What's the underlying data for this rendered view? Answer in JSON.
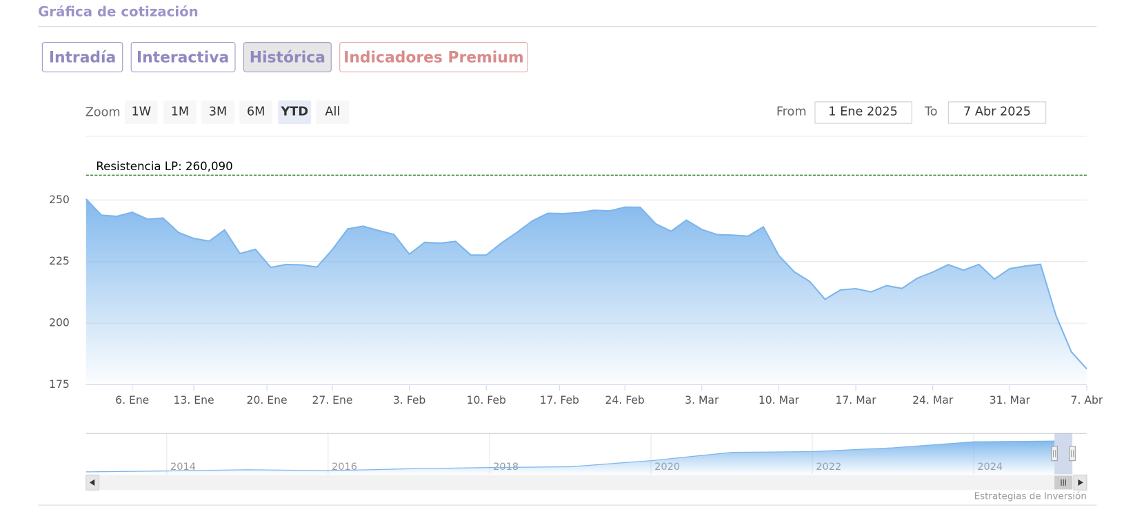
{
  "header": {
    "title": "Gráfica de cotización"
  },
  "tabs": [
    "Intradía",
    "Interactiva",
    "Histórica",
    "Indicadores Premium"
  ],
  "zoom": {
    "label": "Zoom",
    "buttons": [
      "1W",
      "1M",
      "3M",
      "6M",
      "YTD",
      "All"
    ]
  },
  "range": {
    "from_label": "From",
    "from": "1 Ene 2025",
    "to_label": "To",
    "to": "7 Abr 2025"
  },
  "credit": "Estrategias de Inversión",
  "chart_data": [
    {
      "type": "area",
      "color": "#7cb5ec",
      "grid": true,
      "x": [
        "2024-12-31",
        "2025-01-02",
        "2025-01-03",
        "2025-01-06",
        "2025-01-07",
        "2025-01-08",
        "2025-01-10",
        "2025-01-13",
        "2025-01-14",
        "2025-01-15",
        "2025-01-16",
        "2025-01-17",
        "2025-01-21",
        "2025-01-22",
        "2025-01-23",
        "2025-01-24",
        "2025-01-27",
        "2025-01-28",
        "2025-01-29",
        "2025-01-30",
        "2025-01-31",
        "2025-02-03",
        "2025-02-04",
        "2025-02-05",
        "2025-02-06",
        "2025-02-07",
        "2025-02-10",
        "2025-02-11",
        "2025-02-12",
        "2025-02-13",
        "2025-02-14",
        "2025-02-18",
        "2025-02-19",
        "2025-02-20",
        "2025-02-21",
        "2025-02-24",
        "2025-02-25",
        "2025-02-26",
        "2025-02-27",
        "2025-02-28",
        "2025-03-03",
        "2025-03-04",
        "2025-03-05",
        "2025-03-06",
        "2025-03-07",
        "2025-03-10",
        "2025-03-11",
        "2025-03-12",
        "2025-03-13",
        "2025-03-14",
        "2025-03-17",
        "2025-03-18",
        "2025-03-19",
        "2025-03-20",
        "2025-03-21",
        "2025-03-24",
        "2025-03-25",
        "2025-03-26",
        "2025-03-27",
        "2025-03-28",
        "2025-03-31",
        "2025-04-01",
        "2025-04-02",
        "2025-04-03",
        "2025-04-04",
        "2025-04-07"
      ],
      "values": [
        250.42,
        243.85,
        243.36,
        245.0,
        242.21,
        242.7,
        236.85,
        234.4,
        233.28,
        237.87,
        228.26,
        229.98,
        222.64,
        223.83,
        223.66,
        222.78,
        229.86,
        238.26,
        239.36,
        237.59,
        236.0,
        228.01,
        232.8,
        232.47,
        233.22,
        227.63,
        227.65,
        232.62,
        236.87,
        241.53,
        244.6,
        244.47,
        244.87,
        245.83,
        245.55,
        247.1,
        247.04,
        240.36,
        237.3,
        241.84,
        238.03,
        235.93,
        235.74,
        235.33,
        239.07,
        227.48,
        220.84,
        216.98,
        209.68,
        213.49,
        214.0,
        212.69,
        215.24,
        214.1,
        218.27,
        220.73,
        223.75,
        221.53,
        223.85,
        217.9,
        222.13,
        223.19,
        223.89,
        203.19,
        188.38,
        181.46
      ],
      "ylim": [
        175,
        262
      ],
      "yticks": [
        175,
        200,
        225,
        250
      ],
      "xticks": [
        {
          "value": "2025-01-06",
          "label": "6. Ene"
        },
        {
          "value": "2025-01-13",
          "label": "13. Ene"
        },
        {
          "value": "2025-01-20",
          "label": "20. Ene"
        },
        {
          "value": "2025-01-27",
          "label": "27. Ene"
        },
        {
          "value": "2025-02-03",
          "label": "3. Feb"
        },
        {
          "value": "2025-02-10",
          "label": "10. Feb"
        },
        {
          "value": "2025-02-17",
          "label": "17. Feb"
        },
        {
          "value": "2025-02-24",
          "label": "24. Feb"
        },
        {
          "value": "2025-03-03",
          "label": "3. Mar"
        },
        {
          "value": "2025-03-10",
          "label": "10. Mar"
        },
        {
          "value": "2025-03-17",
          "label": "17. Mar"
        },
        {
          "value": "2025-03-24",
          "label": "24. Mar"
        },
        {
          "value": "2025-03-31",
          "label": "31. Mar"
        },
        {
          "value": "2025-04-07",
          "label": "7. Abr"
        }
      ],
      "plot_lines": [
        {
          "value": 260.09,
          "label": "Resistencia LP: 260,090",
          "color": "#1e7b1e"
        }
      ]
    },
    {
      "type": "area",
      "color": "#7cb5ec",
      "x": [
        2013,
        2014,
        2015,
        2016,
        2017,
        2018,
        2019,
        2020,
        2021,
        2022,
        2023,
        2024,
        2025
      ],
      "values": [
        16,
        22,
        30,
        24,
        36,
        45,
        50,
        90,
        145,
        150,
        175,
        215,
        220
      ],
      "xlim": [
        2013,
        2025.4
      ],
      "ylim": [
        0,
        270
      ],
      "xticks": [
        2014,
        2016,
        2018,
        2020,
        2022,
        2024
      ]
    }
  ]
}
